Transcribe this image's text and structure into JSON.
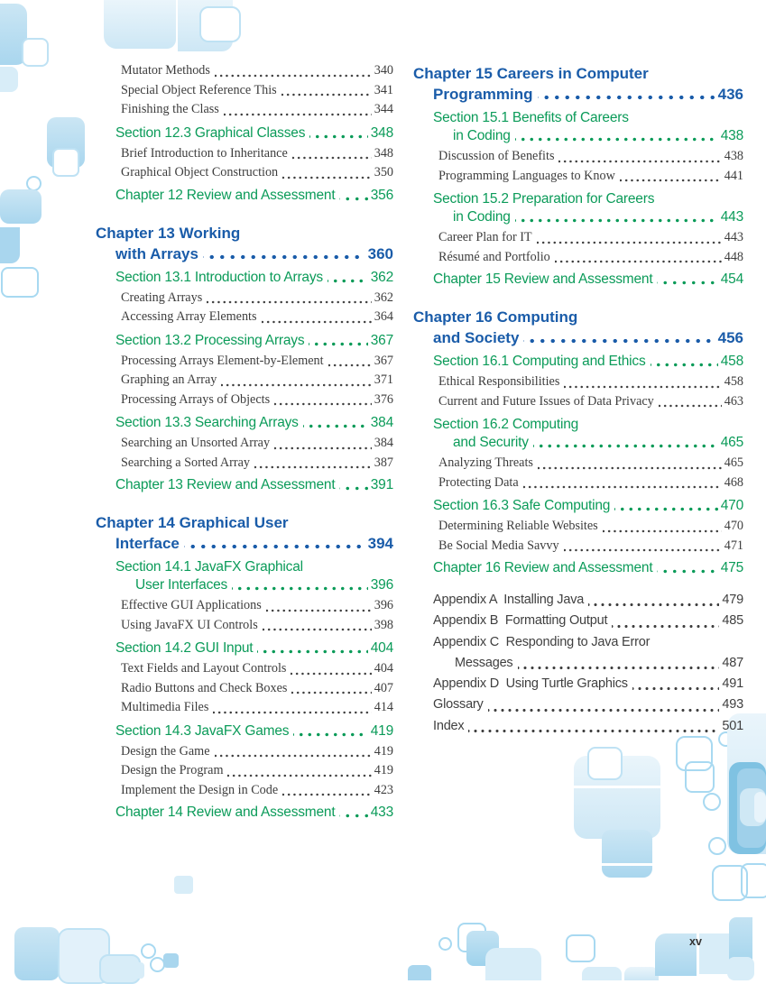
{
  "page": {
    "number": "xv"
  },
  "colors": {
    "chapter_blue": "#1a5ca9",
    "section_green": "#0b9b59",
    "body_text": "#3d3d3d",
    "appendix_text": "#3f3f3f",
    "tile_blue_pale": "#d8edf8",
    "tile_blue_medium": "#a9d6ee",
    "tile_blue_deep": "#7fc2e2"
  },
  "toc": {
    "columns": [
      {
        "name": "left",
        "entries": [
          {
            "type": "sub",
            "lines": [
              "Mutator Methods"
            ],
            "page": "340"
          },
          {
            "type": "sub",
            "lines": [
              "Special Object Reference This"
            ],
            "page": "341"
          },
          {
            "type": "sub",
            "lines": [
              "Finishing the Class"
            ],
            "page": "344"
          },
          {
            "type": "section",
            "lines": [
              "Section 12.3 Graphical Classes"
            ],
            "page": "348"
          },
          {
            "type": "sub",
            "lines": [
              "Brief Introduction to Inheritance"
            ],
            "page": "348"
          },
          {
            "type": "sub",
            "lines": [
              "Graphical Object Construction"
            ],
            "page": "350"
          },
          {
            "type": "review",
            "lines": [
              "Chapter 12 Review and Assessment"
            ],
            "page": "356"
          },
          {
            "type": "chapter",
            "lines": [
              "Chapter 13 Working",
              "with Arrays"
            ],
            "page": "360"
          },
          {
            "type": "section",
            "lines": [
              "Section 13.1 Introduction to Arrays"
            ],
            "page": "362"
          },
          {
            "type": "sub",
            "lines": [
              "Creating Arrays"
            ],
            "page": "362"
          },
          {
            "type": "sub",
            "lines": [
              "Accessing Array Elements"
            ],
            "page": "364"
          },
          {
            "type": "section",
            "lines": [
              "Section 13.2 Processing Arrays"
            ],
            "page": "367"
          },
          {
            "type": "sub",
            "lines": [
              "Processing Arrays Element-by-Element"
            ],
            "page": "367"
          },
          {
            "type": "sub",
            "lines": [
              "Graphing an Array"
            ],
            "page": "371"
          },
          {
            "type": "sub",
            "lines": [
              "Processing Arrays of Objects"
            ],
            "page": "376"
          },
          {
            "type": "section",
            "lines": [
              "Section 13.3 Searching Arrays"
            ],
            "page": "384"
          },
          {
            "type": "sub",
            "lines": [
              "Searching an Unsorted Array"
            ],
            "page": "384"
          },
          {
            "type": "sub",
            "lines": [
              "Searching a Sorted Array"
            ],
            "page": "387"
          },
          {
            "type": "review",
            "lines": [
              "Chapter 13 Review and Assessment"
            ],
            "page": "391"
          },
          {
            "type": "chapter",
            "lines": [
              "Chapter 14 Graphical User",
              "Interface"
            ],
            "page": "394"
          },
          {
            "type": "section",
            "lines": [
              "Section 14.1 JavaFX Graphical",
              "User Interfaces"
            ],
            "page": "396"
          },
          {
            "type": "sub",
            "lines": [
              "Effective GUI Applications"
            ],
            "page": "396"
          },
          {
            "type": "sub",
            "lines": [
              "Using JavaFX UI Controls"
            ],
            "page": "398"
          },
          {
            "type": "section",
            "lines": [
              "Section 14.2 GUI Input"
            ],
            "page": "404"
          },
          {
            "type": "sub",
            "lines": [
              "Text Fields and Layout Controls"
            ],
            "page": "404"
          },
          {
            "type": "sub",
            "lines": [
              "Radio Buttons and Check Boxes"
            ],
            "page": "407"
          },
          {
            "type": "sub",
            "lines": [
              "Multimedia Files"
            ],
            "page": "414"
          },
          {
            "type": "section",
            "lines": [
              "Section 14.3 JavaFX Games"
            ],
            "page": "419"
          },
          {
            "type": "sub",
            "lines": [
              "Design the Game"
            ],
            "page": "419"
          },
          {
            "type": "sub",
            "lines": [
              "Design the Program"
            ],
            "page": "419"
          },
          {
            "type": "sub",
            "lines": [
              "Implement the Design in Code"
            ],
            "page": "423"
          },
          {
            "type": "review",
            "lines": [
              "Chapter 14 Review and Assessment"
            ],
            "page": "433"
          }
        ]
      },
      {
        "name": "right",
        "entries": [
          {
            "type": "chapter",
            "lines": [
              "Chapter 15 Careers in Computer",
              "Programming"
            ],
            "page": "436"
          },
          {
            "type": "section",
            "lines": [
              "Section 15.1 Benefits of Careers",
              "in Coding"
            ],
            "page": "438"
          },
          {
            "type": "sub",
            "lines": [
              "Discussion of Benefits"
            ],
            "page": "438"
          },
          {
            "type": "sub",
            "lines": [
              "Programming Languages to Know"
            ],
            "page": "441"
          },
          {
            "type": "section",
            "lines": [
              "Section 15.2 Preparation for Careers",
              "in Coding"
            ],
            "page": "443"
          },
          {
            "type": "sub",
            "lines": [
              "Career Plan for IT"
            ],
            "page": "443"
          },
          {
            "type": "sub",
            "lines": [
              "Résumé and Portfolio"
            ],
            "page": "448"
          },
          {
            "type": "review",
            "lines": [
              "Chapter 15 Review and Assessment"
            ],
            "page": "454"
          },
          {
            "type": "chapter",
            "lines": [
              "Chapter 16 Computing",
              "and Society"
            ],
            "page": "456"
          },
          {
            "type": "section",
            "lines": [
              "Section 16.1 Computing and Ethics"
            ],
            "page": "458"
          },
          {
            "type": "sub",
            "lines": [
              "Ethical Responsibilities"
            ],
            "page": "458"
          },
          {
            "type": "sub",
            "lines": [
              "Current and Future Issues of Data Privacy"
            ],
            "page": "463"
          },
          {
            "type": "section",
            "lines": [
              "Section 16.2 Computing",
              "and Security"
            ],
            "page": "465"
          },
          {
            "type": "sub",
            "lines": [
              "Analyzing Threats"
            ],
            "page": "465"
          },
          {
            "type": "sub",
            "lines": [
              "Protecting Data"
            ],
            "page": "468"
          },
          {
            "type": "section",
            "lines": [
              "Section 16.3 Safe Computing"
            ],
            "page": "470"
          },
          {
            "type": "sub",
            "lines": [
              "Determining Reliable Websites"
            ],
            "page": "470"
          },
          {
            "type": "sub",
            "lines": [
              "Be Social Media Savvy"
            ],
            "page": "471"
          },
          {
            "type": "review",
            "lines": [
              "Chapter 16 Review and Assessment"
            ],
            "page": "475"
          },
          {
            "type": "appendix",
            "lines": [
              "Appendix A  Installing Java"
            ],
            "page": "479"
          },
          {
            "type": "appendix",
            "lines": [
              "Appendix B  Formatting Output"
            ],
            "page": "485"
          },
          {
            "type": "appendix",
            "lines": [
              "Appendix C  Responding to Java Error",
              "Messages"
            ],
            "page": "487"
          },
          {
            "type": "appendix",
            "lines": [
              "Appendix D  Using Turtle Graphics"
            ],
            "page": "491"
          },
          {
            "type": "appendix",
            "lines": [
              "Glossary"
            ],
            "page": "493"
          },
          {
            "type": "appendix",
            "lines": [
              "Index"
            ],
            "page": "501"
          }
        ]
      }
    ]
  }
}
